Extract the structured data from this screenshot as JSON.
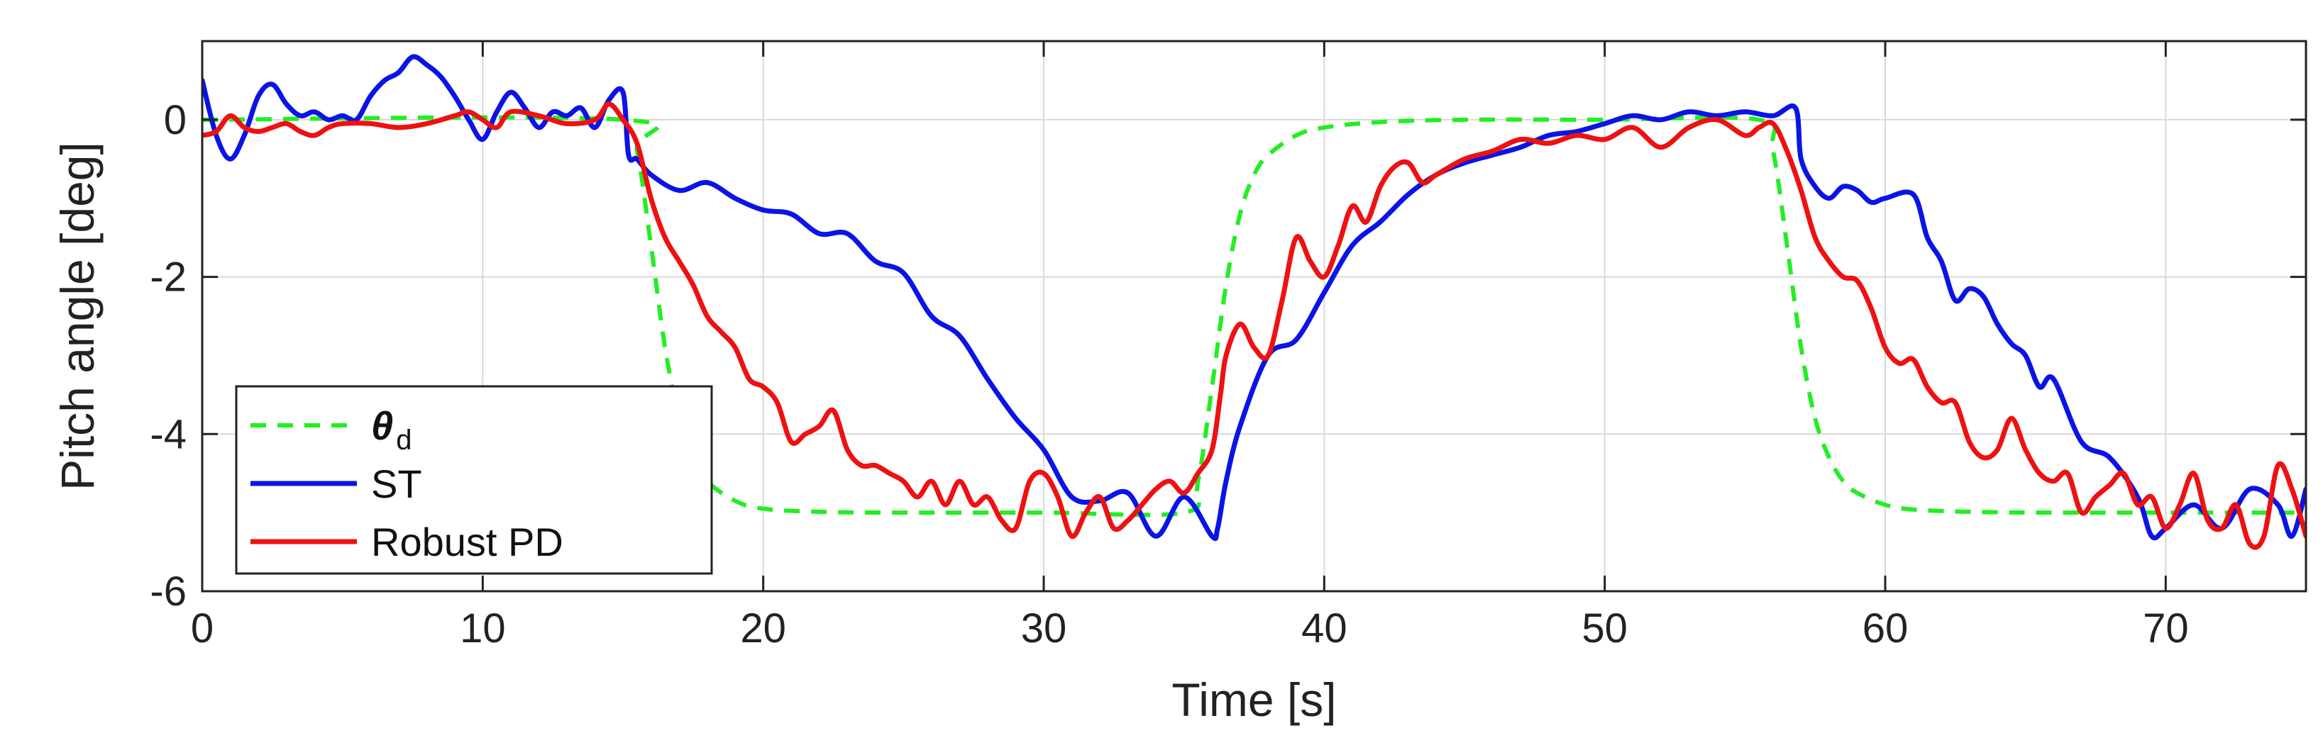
{
  "chart_data": {
    "type": "line",
    "xlabel": "Time [s]",
    "ylabel": "Pitch angle [deg]",
    "xlim": [
      0,
      75
    ],
    "ylim": [
      -6,
      1
    ],
    "xticks": [
      0,
      10,
      20,
      30,
      40,
      50,
      60,
      70
    ],
    "yticks": [
      -6,
      -4,
      -2,
      0
    ],
    "grid": true,
    "legend_position": "bottom-left",
    "colors": {
      "theta_d": "#22ee22",
      "ST": "#0a14e6",
      "RobustPD": "#ee1111",
      "grid": "#d9d9d9",
      "axis": "#222222"
    },
    "series": [
      {
        "name": "θ",
        "name_sub": "d",
        "style": "dashed",
        "x": [
          0,
          15,
          15.5,
          16,
          16.5,
          17,
          17.5,
          18,
          19,
          20,
          22,
          25,
          30,
          35,
          35.5,
          36,
          36.5,
          37,
          37.5,
          38,
          39,
          40,
          42,
          45,
          50,
          55.5,
          56,
          56.5,
          57,
          57.5,
          58,
          58.5,
          59,
          60,
          61,
          63,
          66,
          70,
          75
        ],
        "y": [
          0,
          0,
          -0.4,
          -1.6,
          -2.9,
          -3.8,
          -4.3,
          -4.6,
          -4.85,
          -4.95,
          -4.99,
          -5,
          -5,
          -5,
          -4.6,
          -3.4,
          -2.1,
          -1.2,
          -0.7,
          -0.45,
          -0.2,
          -0.1,
          -0.03,
          0,
          0,
          0,
          -0.4,
          -1.6,
          -2.9,
          -3.8,
          -4.3,
          -4.6,
          -4.75,
          -4.9,
          -4.96,
          -4.99,
          -5,
          -5,
          -5
        ]
      },
      {
        "name": "ST",
        "style": "solid",
        "x": [
          0,
          0.5,
          1,
          1.5,
          2,
          2.5,
          3,
          3.5,
          4,
          4.5,
          5,
          5.5,
          6,
          6.5,
          7,
          7.5,
          8,
          8.5,
          9,
          9.5,
          10,
          10.5,
          11,
          11.5,
          12,
          12.5,
          13,
          13.5,
          14,
          14.5,
          15,
          15.2,
          15.5,
          16,
          17,
          18,
          19,
          20,
          21,
          22,
          23,
          24,
          25,
          26,
          27,
          28,
          29,
          30,
          31,
          32,
          33,
          34,
          35,
          36,
          36.2,
          36.5,
          37,
          38,
          39,
          40,
          41,
          42,
          43,
          44,
          45,
          46,
          47,
          48,
          49,
          50,
          51,
          52,
          53,
          54,
          55,
          56,
          56.8,
          57,
          57.5,
          58,
          58.5,
          59,
          59.5,
          60,
          61,
          61.5,
          62,
          62.5,
          63,
          63.5,
          64,
          64.5,
          65,
          65.5,
          66,
          67,
          68,
          69,
          69.5,
          70,
          71,
          72,
          73,
          74,
          74.5,
          75
        ],
        "y": [
          0.5,
          -0.2,
          -0.5,
          -0.2,
          0.3,
          0.45,
          0.2,
          0.05,
          0.1,
          0.0,
          0.05,
          0.0,
          0.3,
          0.5,
          0.6,
          0.8,
          0.7,
          0.55,
          0.3,
          0.0,
          -0.25,
          0.1,
          0.35,
          0.15,
          -0.1,
          0.1,
          0.05,
          0.15,
          -0.1,
          0.25,
          0.35,
          -0.45,
          -0.5,
          -0.7,
          -0.9,
          -0.8,
          -1.0,
          -1.15,
          -1.2,
          -1.45,
          -1.45,
          -1.8,
          -1.95,
          -2.5,
          -2.75,
          -3.3,
          -3.8,
          -4.2,
          -4.8,
          -4.85,
          -4.75,
          -5.3,
          -4.8,
          -5.3,
          -5.2,
          -4.6,
          -3.9,
          -3.0,
          -2.8,
          -2.2,
          -1.6,
          -1.3,
          -0.95,
          -0.7,
          -0.55,
          -0.45,
          -0.35,
          -0.2,
          -0.15,
          -0.05,
          0.05,
          0.0,
          0.1,
          0.05,
          0.1,
          0.05,
          0.15,
          -0.5,
          -0.85,
          -1.0,
          -0.85,
          -0.9,
          -1.05,
          -1.0,
          -0.95,
          -1.5,
          -1.8,
          -2.3,
          -2.15,
          -2.25,
          -2.6,
          -2.85,
          -3.0,
          -3.4,
          -3.3,
          -4.1,
          -4.3,
          -4.8,
          -5.3,
          -5.2,
          -4.9,
          -5.2,
          -4.7,
          -4.9,
          -5.3,
          -4.7
        ]
      },
      {
        "name": "Robust PD",
        "style": "solid",
        "x": [
          0,
          0.5,
          1,
          1.5,
          2,
          2.5,
          3,
          3.5,
          4,
          4.5,
          5,
          6,
          7,
          8,
          9,
          9.5,
          10,
          10.5,
          11,
          12,
          13,
          14,
          14.5,
          15,
          15.5,
          16,
          16.5,
          17,
          17.5,
          18,
          18.5,
          19,
          19.5,
          20,
          20.5,
          21,
          21.5,
          22,
          22.5,
          23,
          23.5,
          24,
          24.5,
          25,
          25.5,
          26,
          26.5,
          27,
          27.5,
          28,
          28.5,
          29,
          29.5,
          30,
          30.5,
          31,
          31.5,
          32,
          32.5,
          33,
          33.5,
          34,
          34.5,
          35,
          35.5,
          36,
          36.3,
          36.5,
          37,
          37.5,
          38,
          38.5,
          39,
          39.5,
          40,
          40.5,
          41,
          41.5,
          42,
          42.5,
          43,
          43.5,
          44,
          45,
          46,
          47,
          48,
          49,
          50,
          51,
          52,
          53,
          54,
          55,
          55.5,
          56,
          56.5,
          57,
          57.5,
          58,
          58.5,
          59,
          59.5,
          60,
          60.5,
          61,
          61.5,
          62,
          62.5,
          63,
          63.5,
          64,
          64.5,
          65,
          65.5,
          66,
          66.5,
          67,
          67.5,
          68,
          68.5,
          69,
          69.5,
          70,
          70.5,
          71,
          71.5,
          72,
          72.5,
          73,
          73.5,
          74,
          74.5,
          75
        ],
        "y": [
          -0.2,
          -0.15,
          0.05,
          -0.1,
          -0.15,
          -0.1,
          -0.05,
          -0.15,
          -0.2,
          -0.1,
          -0.05,
          -0.05,
          -0.1,
          -0.05,
          0.05,
          0.1,
          0.0,
          -0.1,
          0.1,
          0.05,
          -0.05,
          0.0,
          0.2,
          0.0,
          -0.3,
          -1.0,
          -1.5,
          -1.8,
          -2.1,
          -2.5,
          -2.7,
          -2.9,
          -3.3,
          -3.4,
          -3.6,
          -4.1,
          -4.0,
          -3.9,
          -3.7,
          -4.2,
          -4.4,
          -4.4,
          -4.5,
          -4.6,
          -4.8,
          -4.6,
          -4.9,
          -4.6,
          -4.9,
          -4.8,
          -5.1,
          -5.2,
          -4.6,
          -4.5,
          -4.8,
          -5.3,
          -5.0,
          -4.8,
          -5.2,
          -5.1,
          -4.9,
          -4.7,
          -4.6,
          -4.75,
          -4.5,
          -4.2,
          -3.5,
          -3.0,
          -2.6,
          -2.9,
          -3.0,
          -2.3,
          -1.5,
          -1.8,
          -2.0,
          -1.6,
          -1.1,
          -1.3,
          -0.85,
          -0.6,
          -0.55,
          -0.8,
          -0.7,
          -0.5,
          -0.4,
          -0.25,
          -0.3,
          -0.2,
          -0.25,
          -0.1,
          -0.35,
          -0.1,
          0.0,
          -0.2,
          -0.1,
          -0.05,
          -0.4,
          -0.9,
          -1.5,
          -1.8,
          -2.0,
          -2.05,
          -2.4,
          -2.9,
          -3.1,
          -3.05,
          -3.4,
          -3.6,
          -3.6,
          -4.1,
          -4.3,
          -4.2,
          -3.8,
          -4.2,
          -4.5,
          -4.6,
          -4.5,
          -5.0,
          -4.8,
          -4.65,
          -4.5,
          -4.9,
          -4.8,
          -5.2,
          -4.9,
          -4.5,
          -5.1,
          -5.2,
          -4.9,
          -5.4,
          -5.3,
          -4.4,
          -4.7,
          -5.3
        ]
      }
    ]
  }
}
